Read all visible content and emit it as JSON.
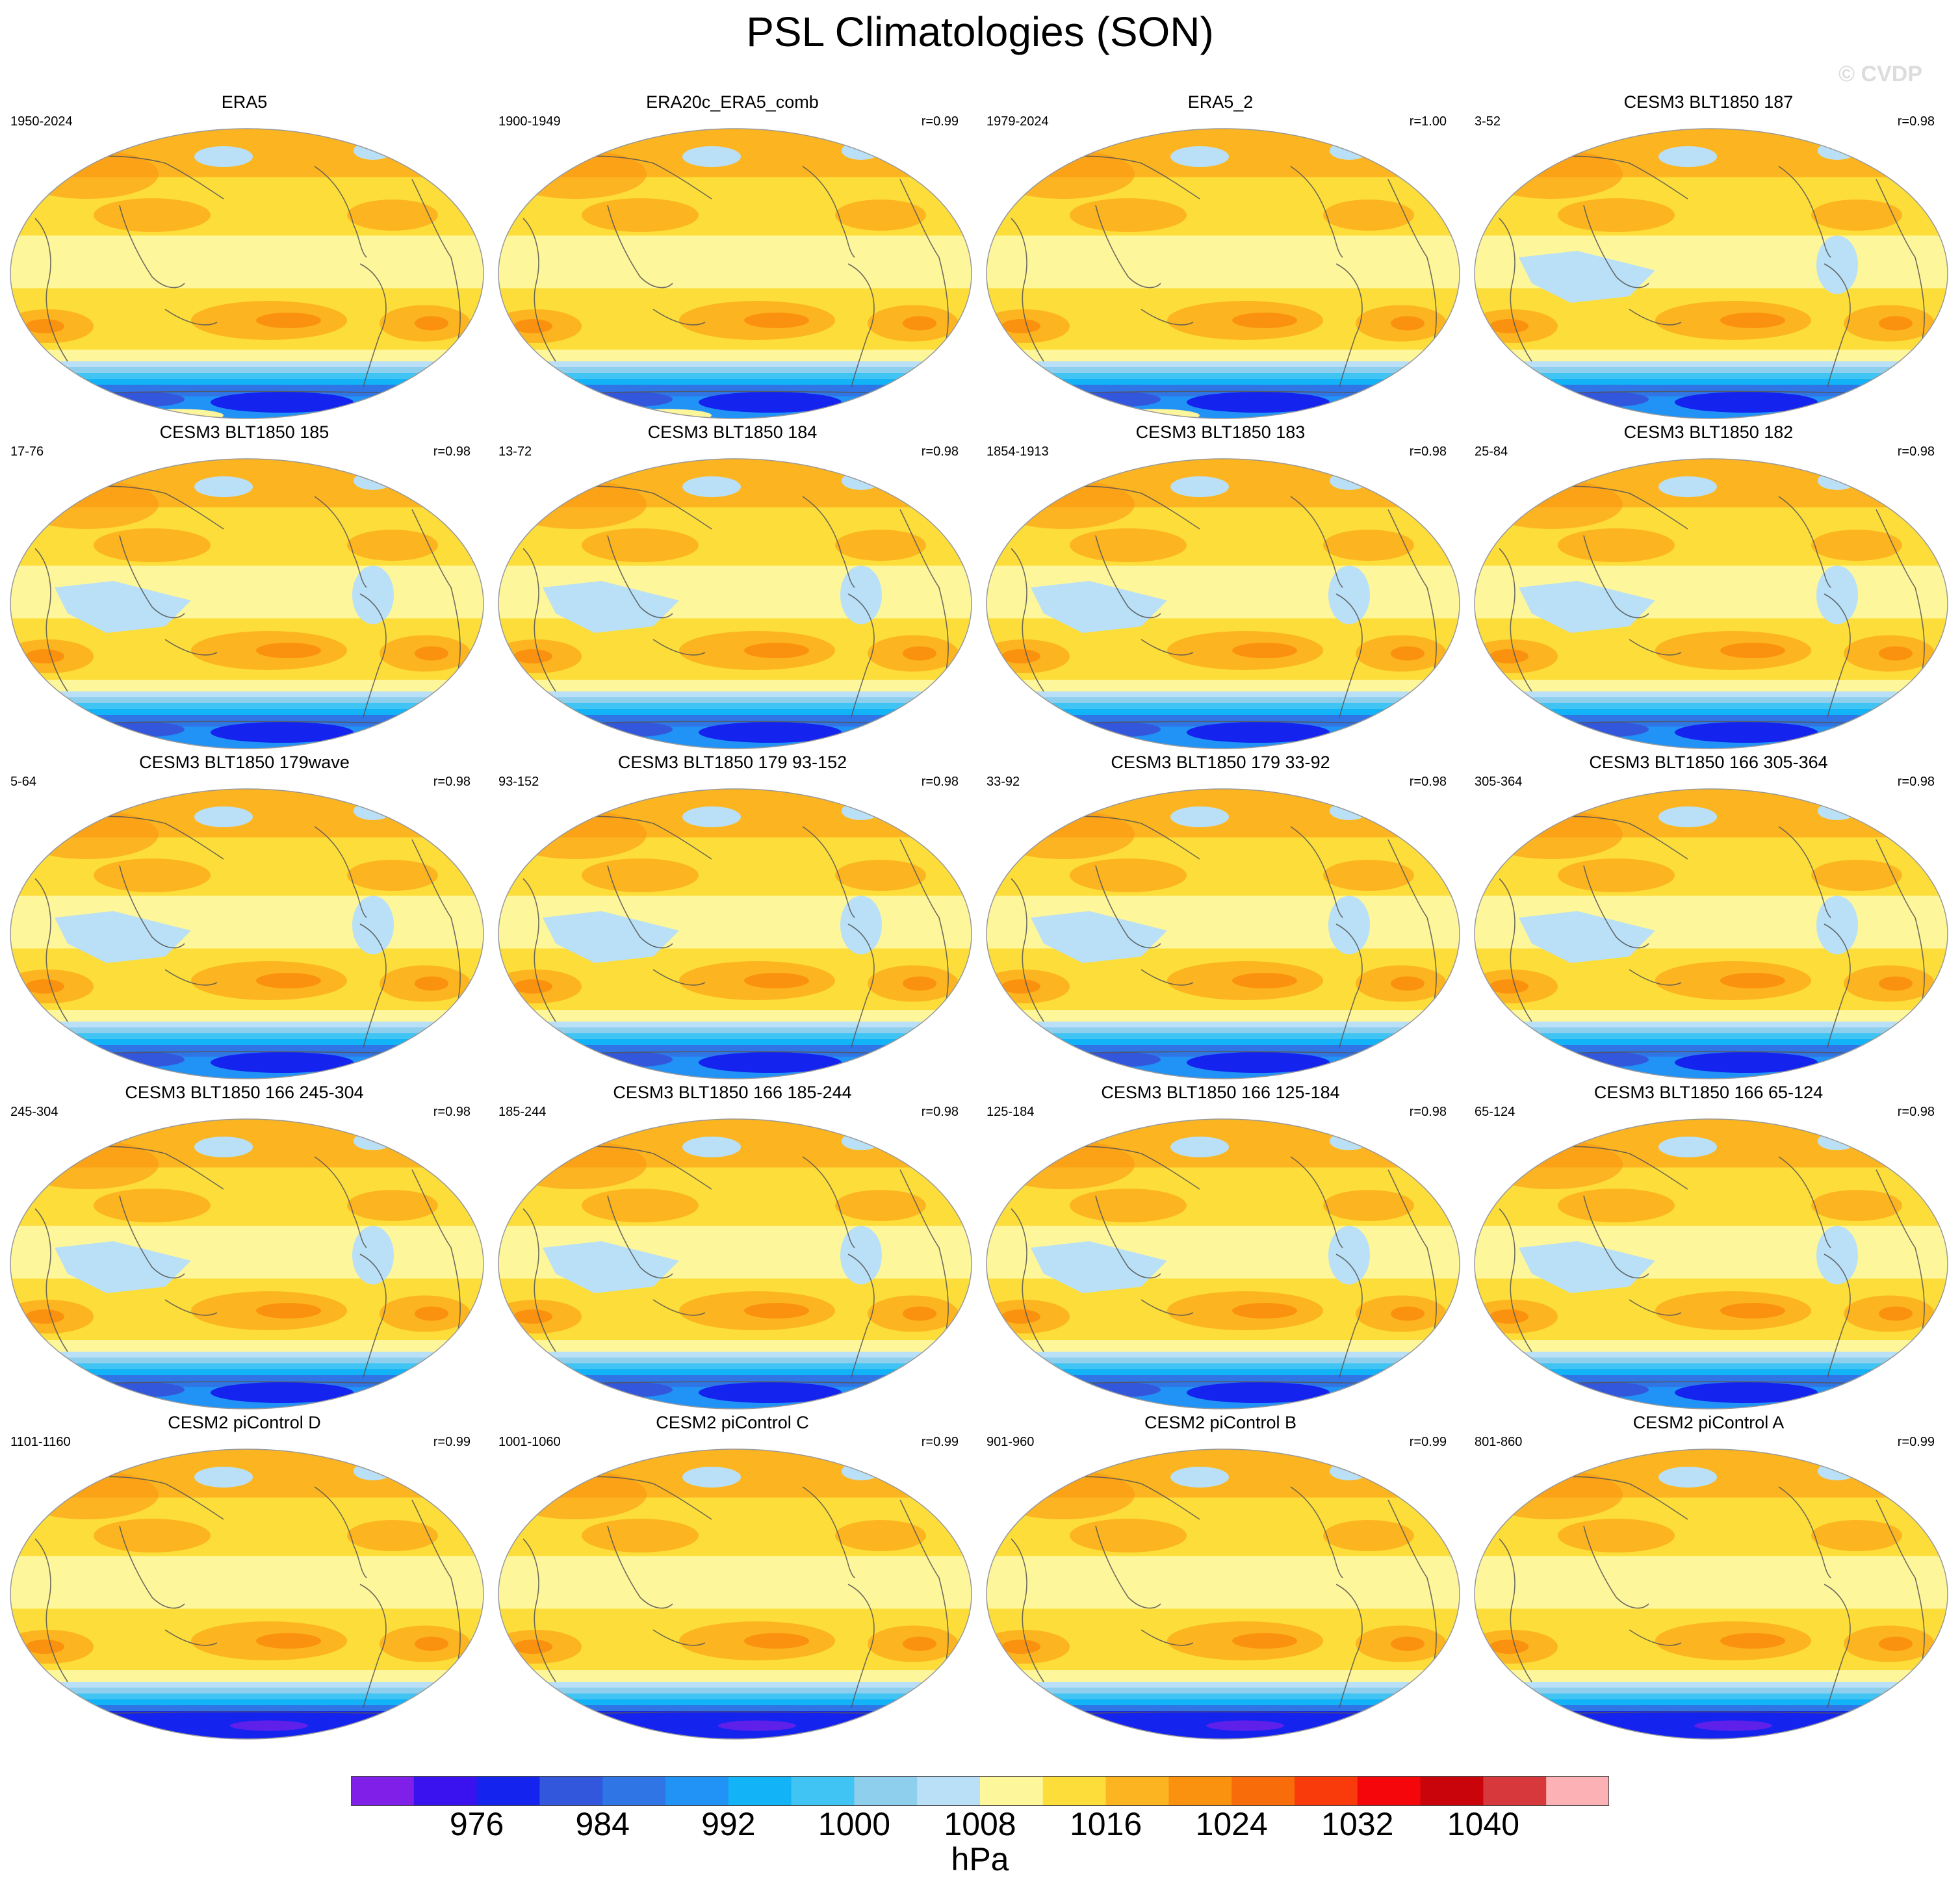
{
  "title": "PSL Climatologies (SON)",
  "watermark": "© CVDP",
  "panels": [
    {
      "title": "ERA5",
      "years": "1950-2024",
      "r": ""
    },
    {
      "title": "ERA20c_ERA5_comb",
      "years": "1900-1949",
      "r": "r=0.99"
    },
    {
      "title": "ERA5_2",
      "years": "1979-2024",
      "r": "r=1.00"
    },
    {
      "title": "CESM3 BLT1850 187",
      "years": "3-52",
      "r": "r=0.98"
    },
    {
      "title": "CESM3 BLT1850 185",
      "years": "17-76",
      "r": "r=0.98"
    },
    {
      "title": "CESM3 BLT1850 184",
      "years": "13-72",
      "r": "r=0.98"
    },
    {
      "title": "CESM3 BLT1850 183",
      "years": "1854-1913",
      "r": "r=0.98"
    },
    {
      "title": "CESM3 BLT1850 182",
      "years": "25-84",
      "r": "r=0.98"
    },
    {
      "title": "CESM3 BLT1850 179wave",
      "years": "5-64",
      "r": "r=0.98"
    },
    {
      "title": "CESM3 BLT1850 179 93-152",
      "years": "93-152",
      "r": "r=0.98"
    },
    {
      "title": "CESM3 BLT1850 179 33-92",
      "years": "33-92",
      "r": "r=0.98"
    },
    {
      "title": "CESM3 BLT1850 166 305-364",
      "years": "305-364",
      "r": "r=0.98"
    },
    {
      "title": "CESM3 BLT1850 166 245-304",
      "years": "245-304",
      "r": "r=0.98"
    },
    {
      "title": "CESM3 BLT1850 166 185-244",
      "years": "185-244",
      "r": "r=0.98"
    },
    {
      "title": "CESM3 BLT1850 166 125-184",
      "years": "125-184",
      "r": "r=0.98"
    },
    {
      "title": "CESM3 BLT1850 166 65-124",
      "years": "65-124",
      "r": "r=0.98"
    },
    {
      "title": "CESM2 piControl D",
      "years": "1101-1160",
      "r": "r=0.99"
    },
    {
      "title": "CESM2 piControl C",
      "years": "1001-1060",
      "r": "r=0.99"
    },
    {
      "title": "CESM2 piControl B",
      "years": "901-960",
      "r": "r=0.99"
    },
    {
      "title": "CESM2 piControl A",
      "years": "801-860",
      "r": "r=0.99"
    }
  ],
  "colorbar": {
    "units": "hPa",
    "colors": [
      "#7f1fe8",
      "#3a12f0",
      "#1424ee",
      "#3257dc",
      "#2f75e6",
      "#2192f6",
      "#12b3f7",
      "#3fc4f4",
      "#8fcfee",
      "#b9e0f6",
      "#fef69a",
      "#fcdd3a",
      "#fcb520",
      "#fb920f",
      "#f86d0a",
      "#f93a0b",
      "#f4060b",
      "#c9040b",
      "#d6383c",
      "#fcb2b4"
    ],
    "tick_labels": [
      "976",
      "984",
      "992",
      "1000",
      "1008",
      "1016",
      "1024",
      "1032",
      "1040"
    ],
    "tick_boundary_index": [
      2,
      4,
      6,
      8,
      10,
      12,
      14,
      16,
      18
    ]
  }
}
